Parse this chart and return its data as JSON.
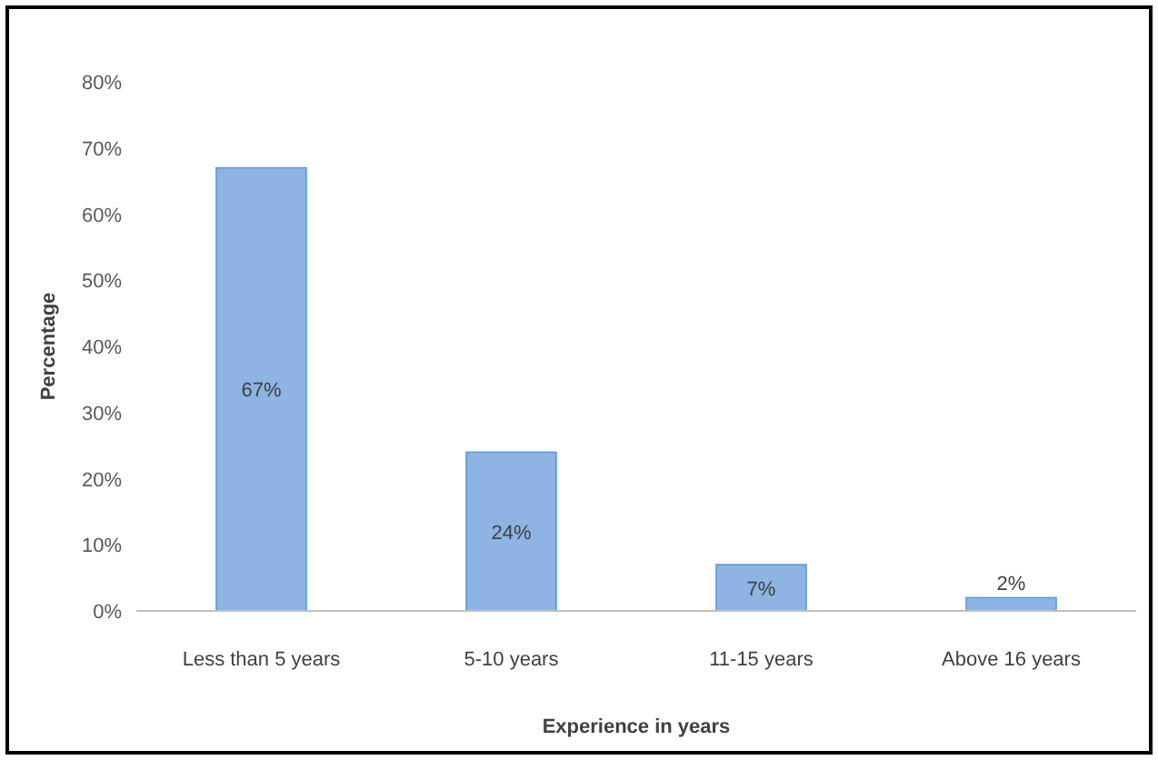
{
  "chart_data": {
    "type": "bar",
    "xlabel": "Experience in years",
    "ylabel": "Percentage",
    "categories": [
      "Less than 5 years",
      "5-10 years",
      "11-15 years",
      "Above 16 years"
    ],
    "values": [
      67,
      24,
      7,
      2
    ],
    "value_labels": [
      "67%",
      "24%",
      "7%",
      "2%"
    ],
    "color": "#8db4e2",
    "ylim": [
      0,
      80
    ],
    "yticks": [
      {
        "value": 0,
        "label": "0%"
      },
      {
        "value": 10,
        "label": "10%"
      },
      {
        "value": 20,
        "label": "20%"
      },
      {
        "value": 30,
        "label": "30%"
      },
      {
        "value": 40,
        "label": "40%"
      },
      {
        "value": 50,
        "label": "50%"
      },
      {
        "value": 60,
        "label": "60%"
      },
      {
        "value": 70,
        "label": "70%"
      },
      {
        "value": 80,
        "label": "80%"
      }
    ],
    "grid": false
  }
}
